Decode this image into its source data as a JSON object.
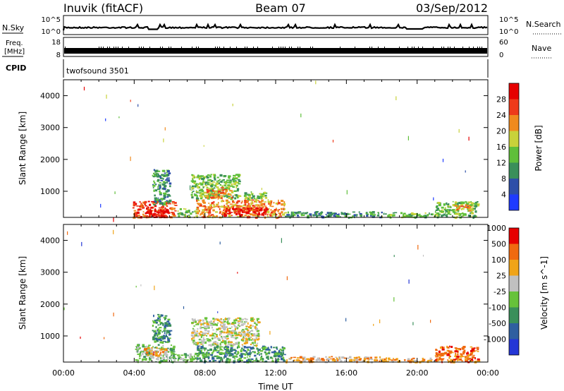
{
  "header": {
    "station": "Inuvik (fitACF)",
    "beam": "Beam 07",
    "date": "03/Sep/2012"
  },
  "noise_panel": {
    "left_label": "N.Sky",
    "right_label": "N.Search",
    "left_ticks": [
      "10^5",
      "10^0"
    ],
    "right_ticks": [
      "10^5",
      "10^0"
    ]
  },
  "freq_panel": {
    "left_label_line1": "Freq.",
    "left_label_line2": "[MHz]",
    "right_label": "Nave",
    "left_ticks": [
      "18",
      "8"
    ],
    "right_ticks": [
      "60",
      "0"
    ]
  },
  "cpid_panel": {
    "label": "CPID",
    "text": "twofsound 3501"
  },
  "chart_data": [
    {
      "type": "heatmap",
      "name": "power",
      "ylabel": "Slant Range [km]",
      "ylim": [
        180,
        4500
      ],
      "yticks": [
        "1000",
        "2000",
        "3000",
        "4000"
      ],
      "xlim": [
        0,
        24
      ],
      "colorbar_label": "Power [dB]",
      "colorbar_ticks": [
        "4",
        "8",
        "12",
        "16",
        "20",
        "24",
        "28"
      ],
      "colors": [
        "#1f3bff",
        "#2e4fa8",
        "#3a8f5a",
        "#5fbf3a",
        "#c8d23a",
        "#f08a1e",
        "#ee3a1a",
        "#e60000"
      ],
      "regions": [
        {
          "t0": 3.9,
          "t1": 6.3,
          "r0": 200,
          "r1": 700,
          "level": 6
        },
        {
          "t0": 4.8,
          "t1": 6.0,
          "r0": 200,
          "r1": 450,
          "level": 7
        },
        {
          "t0": 5.0,
          "t1": 6.0,
          "r0": 600,
          "r1": 1700,
          "level": 2
        },
        {
          "t0": 6.4,
          "t1": 7.6,
          "r0": 200,
          "r1": 480,
          "level": 3
        },
        {
          "t0": 7.2,
          "t1": 9.9,
          "r0": 800,
          "r1": 1550,
          "level": 3
        },
        {
          "t0": 8.0,
          "t1": 9.5,
          "r0": 800,
          "r1": 1150,
          "level": 5
        },
        {
          "t0": 7.5,
          "t1": 12.5,
          "r0": 200,
          "r1": 750,
          "level": 5
        },
        {
          "t0": 9.0,
          "t1": 11.5,
          "r0": 250,
          "r1": 500,
          "level": 7
        },
        {
          "t0": 10.2,
          "t1": 11.5,
          "r0": 750,
          "r1": 1000,
          "level": 3
        },
        {
          "t0": 12.5,
          "t1": 18.0,
          "r0": 200,
          "r1": 380,
          "level": 2
        },
        {
          "t0": 18.0,
          "t1": 21.0,
          "r0": 200,
          "r1": 350,
          "level": 3
        },
        {
          "t0": 21.0,
          "t1": 23.4,
          "r0": 200,
          "r1": 700,
          "level": 3
        },
        {
          "t0": 22.0,
          "t1": 23.0,
          "r0": 400,
          "r1": 600,
          "level": 5
        }
      ]
    },
    {
      "type": "heatmap",
      "name": "velocity",
      "ylabel": "Slant Range [km]",
      "ylim": [
        180,
        4500
      ],
      "yticks": [
        "1000",
        "2000",
        "3000",
        "4000"
      ],
      "xlim": [
        0,
        24
      ],
      "xticks": [
        "00:00",
        "04:00",
        "08:00",
        "12:00",
        "16:00",
        "20:00",
        "00:00"
      ],
      "xlabel": "Time UT",
      "colorbar_label": "Velocity [m s^-1]",
      "colorbar_ticks": [
        "1000",
        "500",
        "100",
        "25",
        "-25",
        "-100",
        "-500",
        "-1000"
      ],
      "colors": [
        "#2436d6",
        "#2f5fa0",
        "#3a8f5a",
        "#67c23a",
        "#c0c0c0",
        "#f0a418",
        "#f06a10",
        "#e60000"
      ],
      "regions": [
        {
          "t0": 4.0,
          "t1": 6.3,
          "r0": 200,
          "r1": 750,
          "level": 3
        },
        {
          "t0": 4.5,
          "t1": 5.8,
          "r0": 400,
          "r1": 650,
          "level": 5
        },
        {
          "t0": 5.0,
          "t1": 6.0,
          "r0": 800,
          "r1": 1700,
          "level": 2
        },
        {
          "t0": 6.4,
          "t1": 7.6,
          "r0": 200,
          "r1": 480,
          "level": 3
        },
        {
          "t0": 7.2,
          "t1": 11.0,
          "r0": 700,
          "r1": 1600,
          "level": 4
        },
        {
          "t0": 7.5,
          "t1": 12.5,
          "r0": 200,
          "r1": 700,
          "level": 2
        },
        {
          "t0": 12.5,
          "t1": 18.0,
          "r0": 200,
          "r1": 370,
          "level": 5
        },
        {
          "t0": 18.0,
          "t1": 21.0,
          "r0": 200,
          "r1": 330,
          "level": 5
        },
        {
          "t0": 21.0,
          "t1": 23.4,
          "r0": 200,
          "r1": 700,
          "level": 6
        }
      ]
    }
  ]
}
